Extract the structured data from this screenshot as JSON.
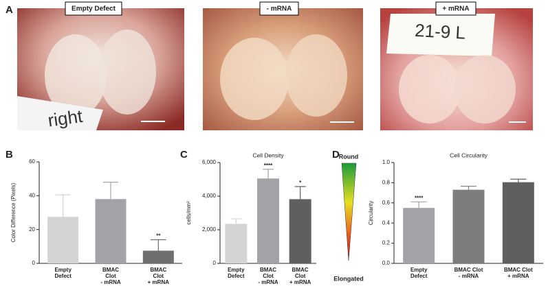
{
  "panels": {
    "A": {
      "letter": "A",
      "photos": [
        {
          "label": "Empty Defect",
          "inscription": "right"
        },
        {
          "label": "- mRNA"
        },
        {
          "label": "+ mRNA",
          "inscription": "21-9 L"
        }
      ]
    },
    "B": {
      "letter": "B"
    },
    "C": {
      "letter": "C"
    },
    "D": {
      "letter": "D",
      "scale_top": "Round",
      "scale_bottom": "Elongated"
    }
  },
  "chart_data": [
    {
      "type": "bar",
      "y_label": "Color Difference (Pixels)",
      "categories": [
        [
          "Empty",
          "Defect"
        ],
        [
          "BMAC",
          "Clot",
          "- mRNA"
        ],
        [
          "BMAC",
          "Clot",
          "+ mRNA"
        ]
      ],
      "values": [
        27.5,
        38,
        7.5
      ],
      "errors": [
        13,
        10,
        6.5
      ],
      "colors": [
        "#d4d4d4",
        "#a3a3a7",
        "#6f6f6f"
      ],
      "significance": [
        null,
        null,
        "**"
      ],
      "ylim": [
        0,
        60
      ],
      "yticks": [
        0,
        20,
        40,
        60
      ]
    },
    {
      "type": "bar",
      "title": "Cell Density",
      "y_label": "cells/mm²",
      "categories": [
        [
          "Empty",
          "Defect"
        ],
        [
          "BMAC",
          "Clot",
          "- mRNA"
        ],
        [
          "BMAC",
          "Clot",
          "+ mRNA"
        ]
      ],
      "values": [
        2350,
        5050,
        3820
      ],
      "errors": [
        300,
        550,
        750
      ],
      "colors": [
        "#d4d4d4",
        "#a3a3a7",
        "#5f5f5f"
      ],
      "significance": [
        null,
        "****",
        "*"
      ],
      "ylim": [
        0,
        6000
      ],
      "yticks": [
        0,
        {
          "value": 2000,
          "label": "2,000"
        },
        {
          "value": 4000,
          "label": "4,000"
        },
        {
          "value": 6000,
          "label": "6,000"
        }
      ]
    },
    {
      "type": "bar",
      "title": "Cell Circularity",
      "y_label": "Circularity",
      "categories": [
        [
          "Empty",
          "Defect"
        ],
        [
          "BMAC Clot",
          "- mRNA"
        ],
        [
          "BMAC Clot",
          "+ mRNA"
        ]
      ],
      "values": [
        0.55,
        0.73,
        0.805
      ],
      "errors": [
        0.06,
        0.035,
        0.03
      ],
      "colors": [
        "#a3a3a7",
        "#7d7d7d",
        "#5f5f5f"
      ],
      "significance": [
        "****",
        null,
        null
      ],
      "ylim": [
        0,
        1.0
      ],
      "yticks": [
        {
          "value": 0,
          "label": "0.0"
        },
        0.2,
        0.4,
        0.6,
        0.8,
        {
          "value": 1.0,
          "label": "1.0"
        }
      ]
    }
  ]
}
